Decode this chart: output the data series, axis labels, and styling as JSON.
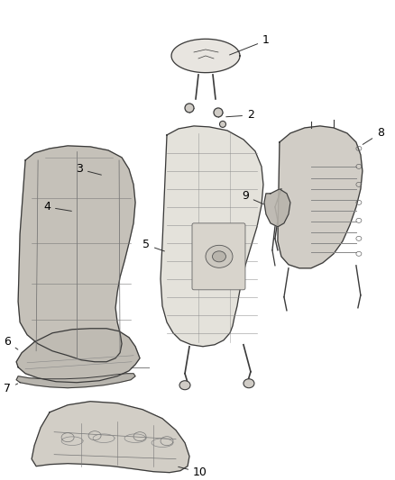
{
  "background_color": "#ffffff",
  "fig_width": 4.38,
  "fig_height": 5.33,
  "dpi": 100,
  "line_color": "#3a3a3a",
  "fill_light": "#e8e5e0",
  "fill_mid": "#d0ccc6",
  "fill_dark": "#b8b4ae",
  "text_color": "#000000",
  "callout_color": "#333333",
  "label_fontsize": 9
}
